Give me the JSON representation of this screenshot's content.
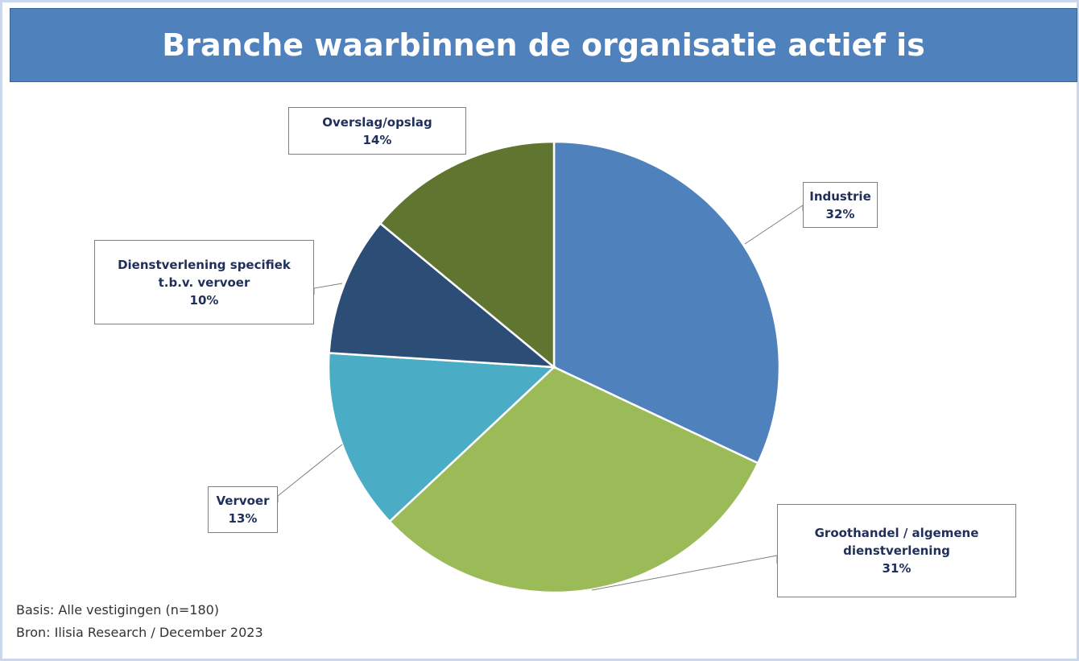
{
  "chart_data": {
    "type": "pie",
    "title": "Branche waarbinnen de organisatie actief is",
    "categories": [
      "Industrie",
      "Groothandel / algemene dienstverlening",
      "Vervoer",
      "Dienstverlening specifiek t.b.v. vervoer",
      "Overslag/opslag"
    ],
    "values": [
      32,
      31,
      13,
      10,
      14
    ],
    "value_labels": [
      "32%",
      "31%",
      "13%",
      "10%",
      "14%"
    ],
    "colors": [
      "#4f81bd",
      "#9bbb59",
      "#4bacc6",
      "#2c4d75",
      "#5f7530"
    ],
    "footnotes": [
      "Basis: Alle vestigingen (n=180)",
      "Bron: Ilisia Research / December 2023"
    ]
  }
}
